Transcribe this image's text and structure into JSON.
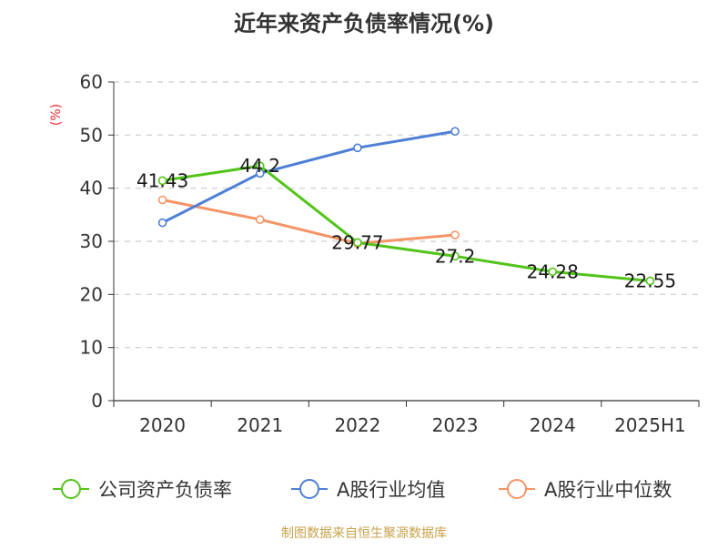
{
  "chart_data": {
    "type": "line",
    "title": "近年来资产负债率情况(%)",
    "ylabel": "(%)",
    "ylim": [
      0,
      60
    ],
    "yticks": [
      0,
      10,
      20,
      30,
      40,
      50,
      60
    ],
    "grid": true,
    "categories": [
      "2020",
      "2021",
      "2022",
      "2023",
      "2024",
      "2025H1"
    ],
    "series": [
      {
        "name": "公司资产负债率",
        "color": "#52c41a",
        "values": [
          41.43,
          44.2,
          29.77,
          27.2,
          24.28,
          22.55
        ],
        "labels": [
          "41.43",
          "44.2",
          "29.77",
          "27.2",
          "24.28",
          "22.55"
        ]
      },
      {
        "name": "A股行业均值",
        "color": "#4e7fd6",
        "values": [
          33.5,
          42.8,
          47.6,
          50.7,
          null,
          null
        ]
      },
      {
        "name": "A股行业中位数",
        "color": "#f59466",
        "values": [
          37.8,
          34.1,
          29.6,
          31.2,
          null,
          null
        ]
      }
    ],
    "legend_position": "bottom"
  },
  "source": "制图数据来自恒生聚源数据库",
  "colors": {
    "title": "#333333",
    "axis": "#333333",
    "grid": "#cccccc",
    "ylabel": "#e8262d",
    "source": "#c8a24a"
  }
}
